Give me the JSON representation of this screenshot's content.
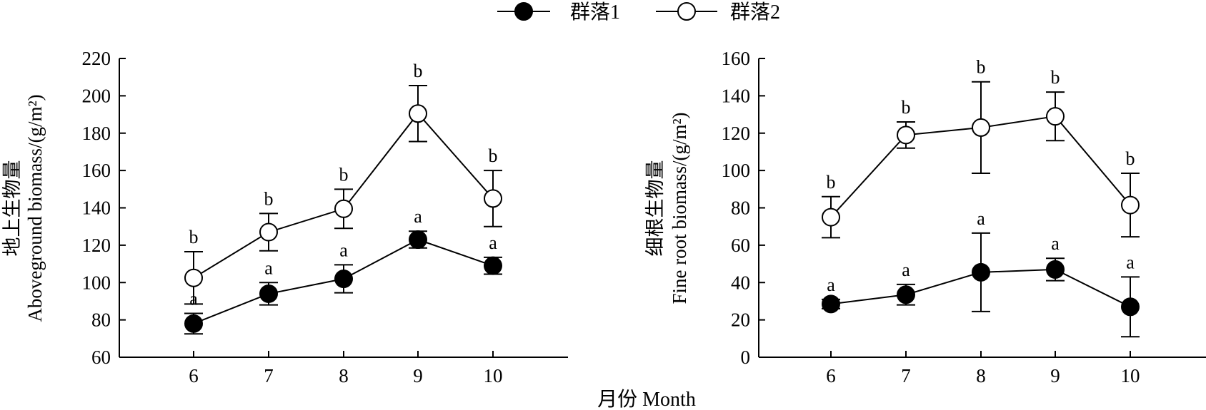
{
  "legend": [
    "群落1",
    "群落2"
  ],
  "xlabel": "月份 Month",
  "chart_data": [
    {
      "type": "line",
      "ylabel_line1": "地上生物量",
      "ylabel_line2": "Aboveground biomass/(g/m²)",
      "categories": [
        "6",
        "7",
        "8",
        "9",
        "10"
      ],
      "ylim": [
        60,
        220
      ],
      "yticks": [
        60,
        80,
        100,
        120,
        140,
        160,
        180,
        200,
        220
      ],
      "series": [
        {
          "name": "群落1",
          "marker": "filled",
          "values": [
            78,
            94,
            102,
            123,
            109
          ],
          "errors": [
            5.5,
            6,
            7.5,
            4.5,
            4.5
          ],
          "letters": [
            "a",
            "a",
            "a",
            "a",
            "a"
          ]
        },
        {
          "name": "群落2",
          "marker": "open",
          "values": [
            102.5,
            127,
            139.5,
            190.5,
            145
          ],
          "errors": [
            14,
            10,
            10.5,
            15,
            15
          ],
          "letters": [
            "b",
            "b",
            "b",
            "b",
            "b"
          ]
        }
      ]
    },
    {
      "type": "line",
      "ylabel_line1": "细根生物量",
      "ylabel_line2": "Fine root biomass/(g/m²)",
      "categories": [
        "6",
        "7",
        "8",
        "9",
        "10"
      ],
      "ylim": [
        0,
        160
      ],
      "yticks": [
        0,
        20,
        40,
        60,
        80,
        100,
        120,
        140,
        160
      ],
      "series": [
        {
          "name": "群落1",
          "marker": "filled",
          "values": [
            28.5,
            33.5,
            45.5,
            47,
            27
          ],
          "errors": [
            2.5,
            5.5,
            21,
            6,
            16
          ],
          "letters": [
            "a",
            "a",
            "a",
            "a",
            "a"
          ]
        },
        {
          "name": "群落2",
          "marker": "open",
          "values": [
            75,
            119,
            123,
            129,
            81.5
          ],
          "errors": [
            11,
            7,
            24.5,
            13,
            17
          ],
          "letters": [
            "b",
            "b",
            "b",
            "b",
            "b"
          ]
        }
      ]
    }
  ]
}
